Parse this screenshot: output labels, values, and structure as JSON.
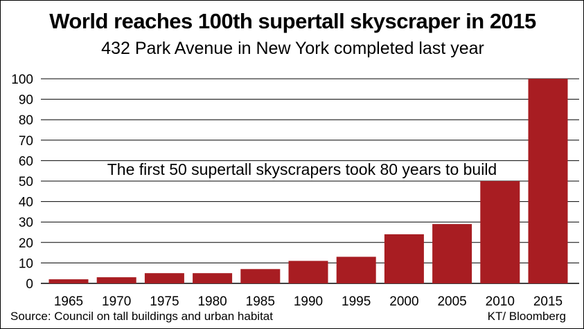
{
  "chart_data": {
    "type": "bar",
    "title": "World reaches 100th supertall skyscraper in 2015",
    "subtitle": "432 Park Avenue in New York completed last year",
    "categories": [
      "1965",
      "1970",
      "1975",
      "1980",
      "1985",
      "1990",
      "1995",
      "2000",
      "2005",
      "2010",
      "2015"
    ],
    "values": [
      2,
      3,
      5,
      5,
      7,
      11,
      13,
      24,
      29,
      50,
      100
    ],
    "xlabel": "",
    "ylabel": "",
    "ylim": [
      0,
      100
    ],
    "yticks": [
      0,
      10,
      20,
      30,
      40,
      50,
      60,
      70,
      80,
      90,
      100
    ],
    "grid": true,
    "bar_color": "#a81d22",
    "grid_color": "#000000",
    "annotation": "The first 50 supertall skyscrapers took 80 years to build"
  },
  "footer": {
    "source": "Source: Council on tall buildings and urban habitat",
    "credit": "KT/ Bloomberg"
  }
}
